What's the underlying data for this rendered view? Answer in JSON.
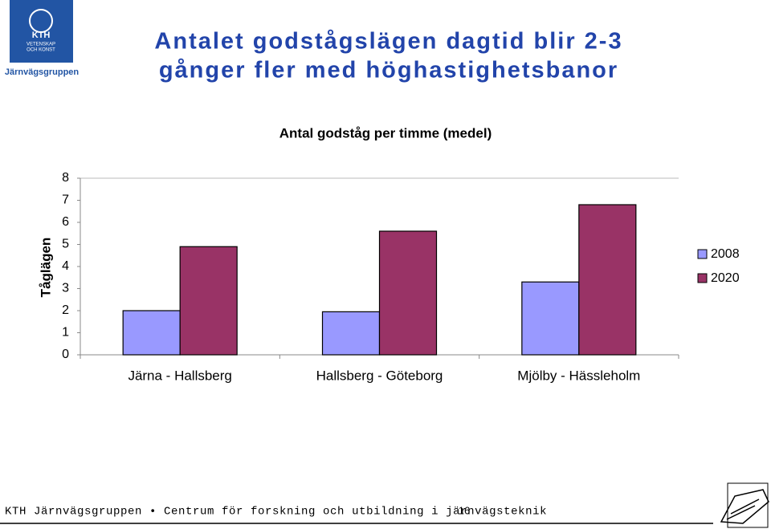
{
  "slide": {
    "group": "Järnvägsgruppen",
    "logo": {
      "name": "KTH",
      "motto": [
        "VETENSKAP",
        "OCH KONST"
      ]
    },
    "title": [
      "Antalet godstågslägen dagtid blir 2-3",
      "gånger fler med höghastighetsbanor"
    ]
  },
  "chart_data": {
    "type": "bar",
    "title": "Antal godståg per timme (medel)",
    "y_label": "Tåglägen",
    "categories": [
      "Järna - Hallsberg",
      "Hallsberg - Göteborg",
      "Mjölby - Hässleholm"
    ],
    "series": [
      {
        "name": "2008",
        "color": "#9999ff",
        "values": [
          2.0,
          1.95,
          3.3
        ]
      },
      {
        "name": "2020",
        "color": "#993366",
        "values": [
          4.9,
          5.6,
          6.8
        ]
      }
    ],
    "ylim": [
      0,
      8
    ],
    "yticks": [
      0,
      1,
      2,
      3,
      4,
      5,
      6,
      7,
      8
    ],
    "legend": "right"
  },
  "footer": {
    "text": "KTH Järnvägsgruppen • Centrum för forskning och utbildning i järnvägsteknik",
    "page": "16"
  }
}
